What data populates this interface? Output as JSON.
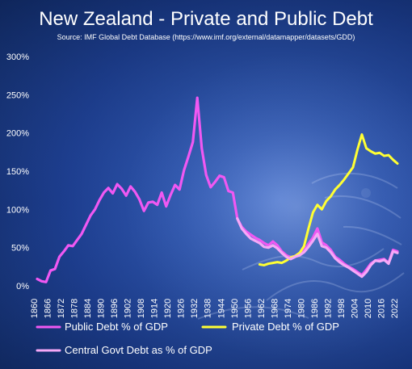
{
  "colors": {
    "background_top": "#10285f",
    "background_bottom": "#3a63bf",
    "public_debt": "#f058f2",
    "private_debt": "#ffff33",
    "central_govt": "#f6a8f7",
    "text": "#ffffff"
  },
  "chart_data": {
    "type": "line",
    "title": "New Zealand - Private and Public Debt",
    "subtitle": "Source: IMF Global Debt Database (https://www.imf.org/external/datamapper/datasets/GDD)",
    "xlabel": "",
    "ylabel": "",
    "xlim": [
      1860,
      2022
    ],
    "ylim": [
      0,
      300
    ],
    "grid": false,
    "legend_position": "bottom",
    "x_ticks": [
      "1860",
      "1866",
      "1872",
      "1878",
      "1884",
      "1890",
      "1896",
      "1902",
      "1908",
      "1914",
      "1920",
      "1926",
      "1932",
      "1938",
      "1944",
      "1950",
      "1956",
      "1962",
      "1968",
      "1974",
      "1980",
      "1986",
      "1992",
      "1998",
      "2004",
      "2010",
      "2016",
      "2022"
    ],
    "y_ticks": [
      "0%",
      "50%",
      "100%",
      "150%",
      "200%",
      "250%",
      "300%"
    ],
    "series": [
      {
        "name": "Public Debt % of GDP",
        "color": "#f058f2",
        "x": [
          1860,
          1862,
          1864,
          1866,
          1868,
          1870,
          1872,
          1874,
          1876,
          1878,
          1880,
          1882,
          1884,
          1886,
          1888,
          1890,
          1892,
          1894,
          1896,
          1898,
          1900,
          1902,
          1904,
          1906,
          1908,
          1910,
          1912,
          1914,
          1916,
          1918,
          1920,
          1922,
          1924,
          1926,
          1928,
          1930,
          1932,
          1934,
          1936,
          1938,
          1940,
          1942,
          1944,
          1946,
          1948,
          1950,
          1952,
          1954,
          1956,
          1958,
          1960,
          1962,
          1964,
          1966,
          1968,
          1970,
          1972,
          1974,
          1976,
          1978,
          1980,
          1982,
          1984,
          1986,
          1988,
          1990,
          1992,
          1994,
          1996,
          1998,
          2000,
          2002,
          2004,
          2006,
          2008,
          2010,
          2012,
          2014,
          2016,
          2018,
          2020,
          2022
        ],
        "values": [
          9,
          6,
          5,
          20,
          22,
          38,
          45,
          53,
          52,
          60,
          68,
          80,
          92,
          100,
          112,
          122,
          128,
          121,
          133,
          127,
          118,
          130,
          123,
          113,
          98,
          109,
          110,
          106,
          122,
          104,
          119,
          132,
          126,
          151,
          169,
          188,
          246,
          180,
          145,
          129,
          136,
          144,
          142,
          124,
          122,
          88,
          77,
          71,
          67,
          63,
          60,
          56,
          53,
          58,
          53,
          45,
          40,
          37,
          39,
          43,
          46,
          55,
          63,
          75,
          57,
          53,
          47,
          38,
          34,
          29,
          25,
          22,
          18,
          14,
          21,
          29,
          33,
          34,
          35,
          30,
          47,
          45
        ]
      },
      {
        "name": "Private Debt % of GDP",
        "color": "#ffff33",
        "x": [
          1960,
          1962,
          1964,
          1966,
          1968,
          1970,
          1972,
          1974,
          1976,
          1978,
          1980,
          1982,
          1984,
          1986,
          1988,
          1990,
          1992,
          1994,
          1996,
          1998,
          2000,
          2002,
          2004,
          2006,
          2008,
          2010,
          2012,
          2014,
          2016,
          2018,
          2020,
          2022
        ],
        "values": [
          28,
          27,
          29,
          30,
          31,
          30,
          33,
          37,
          39,
          43,
          52,
          75,
          96,
          106,
          100,
          111,
          117,
          126,
          132,
          139,
          147,
          155,
          178,
          198,
          180,
          176,
          173,
          174,
          170,
          171,
          165,
          160
        ]
      },
      {
        "name": "Central Govt Debt as % of GDP",
        "color": "#f6a8f7",
        "x": [
          1950,
          1952,
          1954,
          1956,
          1958,
          1960,
          1962,
          1964,
          1966,
          1968,
          1970,
          1972,
          1974,
          1976,
          1978,
          1980,
          1982,
          1984,
          1986,
          1988,
          1990,
          1992,
          1994,
          1996,
          1998,
          2000,
          2002,
          2004,
          2006,
          2008,
          2010,
          2012,
          2014,
          2016,
          2018,
          2020,
          2022
        ],
        "values": [
          88,
          75,
          68,
          62,
          59,
          56,
          51,
          50,
          53,
          49,
          43,
          38,
          35,
          38,
          40,
          44,
          51,
          59,
          68,
          52,
          50,
          44,
          36,
          31,
          27,
          24,
          20,
          16,
          12,
          18,
          27,
          33,
          32,
          34,
          29,
          45,
          43
        ]
      }
    ]
  }
}
